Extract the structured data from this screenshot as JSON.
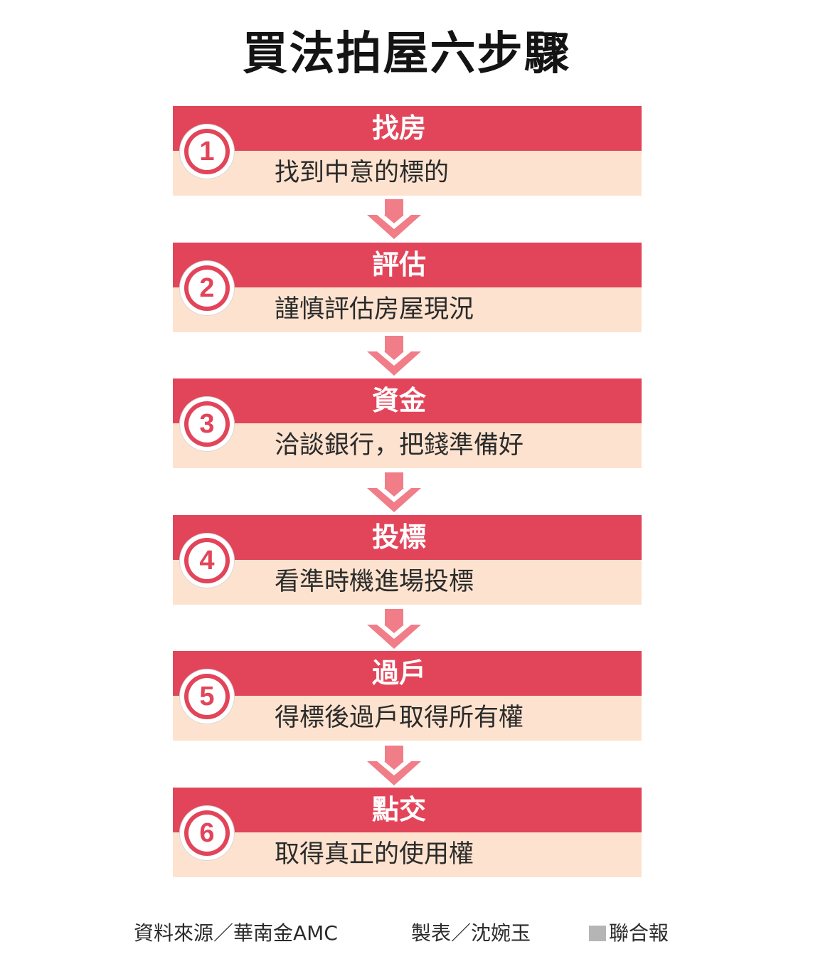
{
  "title": "買法拍屋六步驟",
  "steps": [
    {
      "number": "1",
      "heading": "找房",
      "desc": "找到中意的標的"
    },
    {
      "number": "2",
      "heading": "評估",
      "desc": "謹慎評估房屋現況"
    },
    {
      "number": "3",
      "heading": "資金",
      "desc": "洽談銀行，把錢準備好"
    },
    {
      "number": "4",
      "heading": "投標",
      "desc": "看準時機進場投標"
    },
    {
      "number": "5",
      "heading": "過戶",
      "desc": "得標後過戶取得所有權"
    },
    {
      "number": "6",
      "heading": "點交",
      "desc": "取得真正的使用權"
    }
  ],
  "footer": {
    "source": "資料來源／華南金AMC",
    "maker": "製表／沈婉玉",
    "publisher": "聯合報"
  },
  "colors": {
    "header_red": "#e2455a",
    "body_peach": "#fde3cf",
    "arrow_pink": "#f07d88"
  },
  "icons": {
    "arrow": "chevron-down-arrow-icon",
    "logo": "gray-square-logo"
  }
}
